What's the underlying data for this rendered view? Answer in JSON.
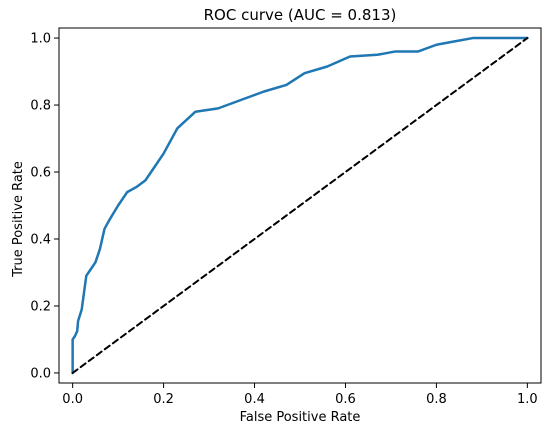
{
  "chart_data": {
    "type": "line",
    "title": "ROC curve (AUC = 0.813)",
    "xlabel": "False Positive Rate",
    "ylabel": "True Positive Rate",
    "xlim": [
      -0.03,
      1.03
    ],
    "ylim": [
      -0.03,
      1.03
    ],
    "xticks": [
      "0.0",
      "0.2",
      "0.4",
      "0.6",
      "0.8",
      "1.0"
    ],
    "yticks": [
      "0.0",
      "0.2",
      "0.4",
      "0.6",
      "0.8",
      "1.0"
    ],
    "grid": false,
    "legend": false,
    "series": [
      {
        "color": "#1f77b4",
        "style": "solid",
        "x": [
          0.0,
          0.0,
          0.005,
          0.01,
          0.012,
          0.02,
          0.025,
          0.03,
          0.04,
          0.05,
          0.06,
          0.07,
          0.08,
          0.1,
          0.12,
          0.14,
          0.16,
          0.18,
          0.2,
          0.23,
          0.27,
          0.32,
          0.37,
          0.42,
          0.47,
          0.51,
          0.56,
          0.61,
          0.67,
          0.71,
          0.76,
          0.8,
          0.84,
          0.88,
          0.92,
          0.96,
          1.0
        ],
        "y": [
          0.0,
          0.1,
          0.11,
          0.125,
          0.155,
          0.19,
          0.24,
          0.29,
          0.31,
          0.33,
          0.37,
          0.43,
          0.455,
          0.5,
          0.54,
          0.555,
          0.575,
          0.615,
          0.655,
          0.73,
          0.78,
          0.79,
          0.815,
          0.84,
          0.86,
          0.895,
          0.915,
          0.945,
          0.95,
          0.96,
          0.96,
          0.98,
          0.99,
          1.0,
          1.0,
          1.0,
          1.0
        ]
      },
      {
        "color": "#000000",
        "style": "dashed",
        "x": [
          0,
          1
        ],
        "y": [
          0,
          1
        ]
      }
    ]
  }
}
